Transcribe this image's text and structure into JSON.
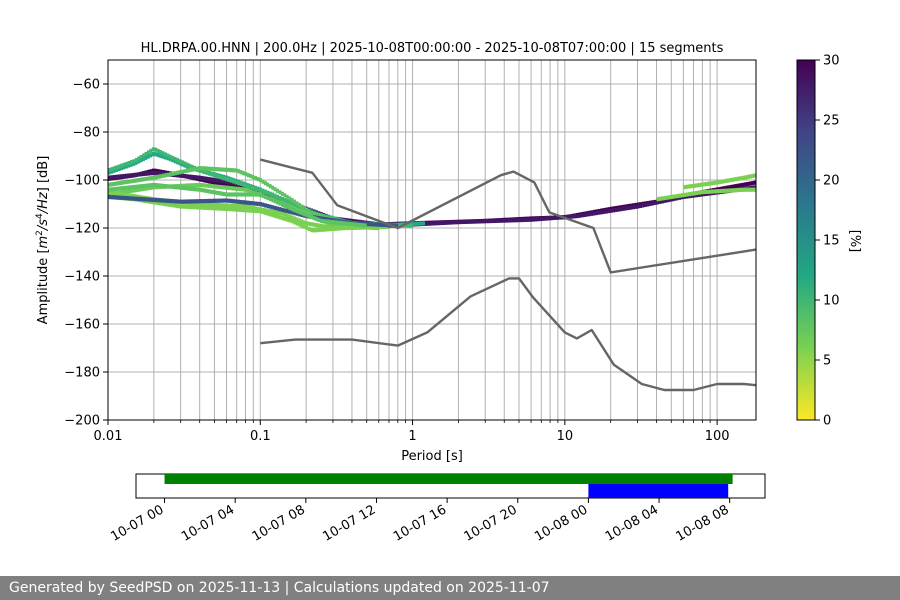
{
  "footer_text": "Generated by SeedPSD on 2025-11-13 | Calculations updated on 2025-11-07",
  "chart_data": [
    {
      "type": "heatmap",
      "title": "HL.DRPA.00.HNN | 200.0Hz | 2025-10-08T00:00:00 - 2025-10-08T07:00:00 | 15 segments",
      "xlabel": "Period [s]",
      "ylabel": "Amplitude [m²/s⁴/Hz] [dB]",
      "xscale": "log",
      "xlim": [
        0.01,
        180
      ],
      "ylim": [
        -200,
        -50
      ],
      "x_ticks": [
        {
          "value": 0.01,
          "label": "0.01"
        },
        {
          "value": 0.1,
          "label": "0.1"
        },
        {
          "value": 1,
          "label": "1"
        },
        {
          "value": 10,
          "label": "10"
        },
        {
          "value": 100,
          "label": "100"
        }
      ],
      "y_ticks": [
        {
          "value": -60,
          "label": "−60"
        },
        {
          "value": -80,
          "label": "−80"
        },
        {
          "value": -100,
          "label": "−100"
        },
        {
          "value": -120,
          "label": "−120"
        },
        {
          "value": -140,
          "label": "−140"
        },
        {
          "value": -160,
          "label": "−160"
        },
        {
          "value": -180,
          "label": "−180"
        },
        {
          "value": -200,
          "label": "−200"
        }
      ],
      "grid": true,
      "colorbar": {
        "label": "[%]",
        "range": [
          0,
          30
        ],
        "ticks": [
          {
            "value": 0,
            "label": "0"
          },
          {
            "value": 5,
            "label": "5"
          },
          {
            "value": 10,
            "label": "10"
          },
          {
            "value": 15,
            "label": "15"
          },
          {
            "value": 20,
            "label": "20"
          },
          {
            "value": 25,
            "label": "25"
          },
          {
            "value": 30,
            "label": "30"
          }
        ],
        "colormap": [
          "#fde725",
          "#7ad151",
          "#22a884",
          "#2a788e",
          "#414487",
          "#440154"
        ]
      },
      "noise_model_high": [
        [
          0.1,
          -91.5
        ],
        [
          0.22,
          -97
        ],
        [
          0.32,
          -110.5
        ],
        [
          0.8,
          -120
        ],
        [
          3.8,
          -98
        ],
        [
          4.6,
          -96.5
        ],
        [
          6.3,
          -101
        ],
        [
          7.9,
          -113.5
        ],
        [
          15.4,
          -120
        ],
        [
          20,
          -138.5
        ],
        [
          180,
          -129
        ]
      ],
      "noise_model_low": [
        [
          0.1,
          -168
        ],
        [
          0.17,
          -166.5
        ],
        [
          0.4,
          -166.5
        ],
        [
          0.8,
          -169
        ],
        [
          1.25,
          -163.5
        ],
        [
          2.4,
          -148.5
        ],
        [
          4.3,
          -141
        ],
        [
          5,
          -141
        ],
        [
          6.2,
          -149
        ],
        [
          10,
          -163.5
        ],
        [
          12,
          -166
        ],
        [
          15,
          -162.5
        ],
        [
          21,
          -177
        ],
        [
          32,
          -185
        ],
        [
          45,
          -187.5
        ],
        [
          70,
          -187.5
        ],
        [
          100,
          -185
        ],
        [
          150,
          -185
        ],
        [
          180,
          -185.5
        ]
      ],
      "psd_series": [
        {
          "level": 30,
          "points": [
            [
              0.01,
              -99.5
            ],
            [
              0.015,
              -98
            ],
            [
              0.02,
              -96
            ],
            [
              0.03,
              -98
            ],
            [
              0.05,
              -101
            ],
            [
              0.08,
              -103
            ],
            [
              0.12,
              -107
            ],
            [
              0.2,
              -114
            ],
            [
              0.35,
              -117
            ],
            [
              0.6,
              -118.5
            ],
            [
              1,
              -118
            ],
            [
              3,
              -117
            ],
            [
              6,
              -116
            ],
            [
              10,
              -115.5
            ],
            [
              20,
              -112
            ],
            [
              40,
              -109
            ],
            [
              80,
              -105
            ],
            [
              180,
              -101
            ]
          ]
        },
        {
          "level": 28,
          "points": [
            [
              0.01,
              -99
            ],
            [
              0.02,
              -97
            ],
            [
              0.04,
              -99
            ],
            [
              0.08,
              -102
            ],
            [
              0.15,
              -109
            ],
            [
              0.3,
              -116
            ],
            [
              0.7,
              -119
            ],
            [
              2,
              -117.5
            ],
            [
              6,
              -116.5
            ],
            [
              12,
              -115
            ],
            [
              30,
              -111
            ],
            [
              60,
              -107
            ],
            [
              180,
              -103
            ]
          ]
        },
        {
          "level": 12,
          "points": [
            [
              0.01,
              -97
            ],
            [
              0.015,
              -93
            ],
            [
              0.02,
              -89
            ],
            [
              0.025,
              -91
            ],
            [
              0.035,
              -95
            ],
            [
              0.06,
              -99
            ],
            [
              0.1,
              -104
            ],
            [
              0.18,
              -111
            ],
            [
              0.3,
              -117
            ],
            [
              0.6,
              -119
            ],
            [
              1.2,
              -118
            ]
          ]
        },
        {
          "level": 10,
          "points": [
            [
              0.01,
              -96
            ],
            [
              0.015,
              -92
            ],
            [
              0.02,
              -87
            ],
            [
              0.025,
              -90
            ],
            [
              0.04,
              -96
            ],
            [
              0.07,
              -101
            ],
            [
              0.12,
              -106
            ],
            [
              0.2,
              -113
            ],
            [
              0.4,
              -118
            ],
            [
              1,
              -119
            ]
          ]
        },
        {
          "level": 8,
          "points": [
            [
              0.01,
              -102
            ],
            [
              0.02,
              -99
            ],
            [
              0.04,
              -95
            ],
            [
              0.07,
              -96
            ],
            [
              0.1,
              -100
            ],
            [
              0.15,
              -107
            ],
            [
              0.22,
              -114
            ],
            [
              0.35,
              -118
            ],
            [
              0.7,
              -119
            ]
          ]
        },
        {
          "level": 7,
          "points": [
            [
              0.01,
              -106
            ],
            [
              0.02,
              -103
            ],
            [
              0.04,
              -102
            ],
            [
              0.08,
              -104
            ],
            [
              0.12,
              -108
            ],
            [
              0.2,
              -114
            ],
            [
              0.3,
              -119
            ],
            [
              0.6,
              -120
            ]
          ]
        },
        {
          "level": 6,
          "points": [
            [
              0.01,
              -107
            ],
            [
              0.015,
              -108
            ],
            [
              0.03,
              -111
            ],
            [
              0.06,
              -112
            ],
            [
              0.1,
              -113
            ],
            [
              0.16,
              -117
            ],
            [
              0.22,
              -121
            ],
            [
              0.35,
              -120
            ],
            [
              0.7,
              -119.5
            ]
          ]
        },
        {
          "level": 6,
          "points": [
            [
              0.01,
              -105
            ],
            [
              0.02,
              -108
            ],
            [
              0.04,
              -110
            ],
            [
              0.08,
              -111
            ],
            [
              0.14,
              -114
            ],
            [
              0.2,
              -118
            ],
            [
              0.3,
              -120
            ],
            [
              0.6,
              -119
            ]
          ]
        },
        {
          "level": 22,
          "points": [
            [
              0.01,
              -107
            ],
            [
              0.03,
              -109
            ],
            [
              0.06,
              -108.5
            ],
            [
              0.1,
              -110
            ],
            [
              0.2,
              -115
            ],
            [
              0.4,
              -118
            ],
            [
              0.8,
              -119
            ]
          ]
        },
        {
          "level": 8,
          "points": [
            [
              0.01,
              -104
            ],
            [
              0.02,
              -102
            ],
            [
              0.04,
              -104
            ],
            [
              0.06,
              -106
            ],
            [
              0.1,
              -106
            ],
            [
              0.16,
              -112
            ],
            [
              0.25,
              -117
            ],
            [
              0.5,
              -119
            ]
          ]
        },
        {
          "level": 6,
          "points": [
            [
              60,
              -103
            ],
            [
              100,
              -101
            ],
            [
              150,
              -99
            ],
            [
              180,
              -98
            ]
          ]
        },
        {
          "level": 6,
          "points": [
            [
              40,
              -108
            ],
            [
              80,
              -105
            ],
            [
              150,
              -104
            ],
            [
              180,
              -104
            ]
          ]
        }
      ]
    },
    {
      "type": "timeline",
      "x_ticks": [
        {
          "time": "2025-10-07T00:00",
          "label": "10-07 00"
        },
        {
          "time": "2025-10-07T04:00",
          "label": "10-07 04"
        },
        {
          "time": "2025-10-07T08:00",
          "label": "10-07 08"
        },
        {
          "time": "2025-10-07T12:00",
          "label": "10-07 12"
        },
        {
          "time": "2025-10-07T16:00",
          "label": "10-07 16"
        },
        {
          "time": "2025-10-07T20:00",
          "label": "10-07 20"
        },
        {
          "time": "2025-10-08T00:00",
          "label": "10-08 00"
        },
        {
          "time": "2025-10-08T04:00",
          "label": "10-08 04"
        },
        {
          "time": "2025-10-08T08:00",
          "label": "10-08 08"
        }
      ],
      "xlim": [
        "2025-10-06T22:23",
        "2025-10-08T10:00"
      ],
      "bars": [
        {
          "start": "2025-10-07T00:00",
          "end": "2025-10-08T08:10",
          "color": "#008000"
        },
        {
          "start": "2025-10-08T00:00",
          "end": "2025-10-08T07:55",
          "color": "#0000ff"
        }
      ]
    }
  ]
}
